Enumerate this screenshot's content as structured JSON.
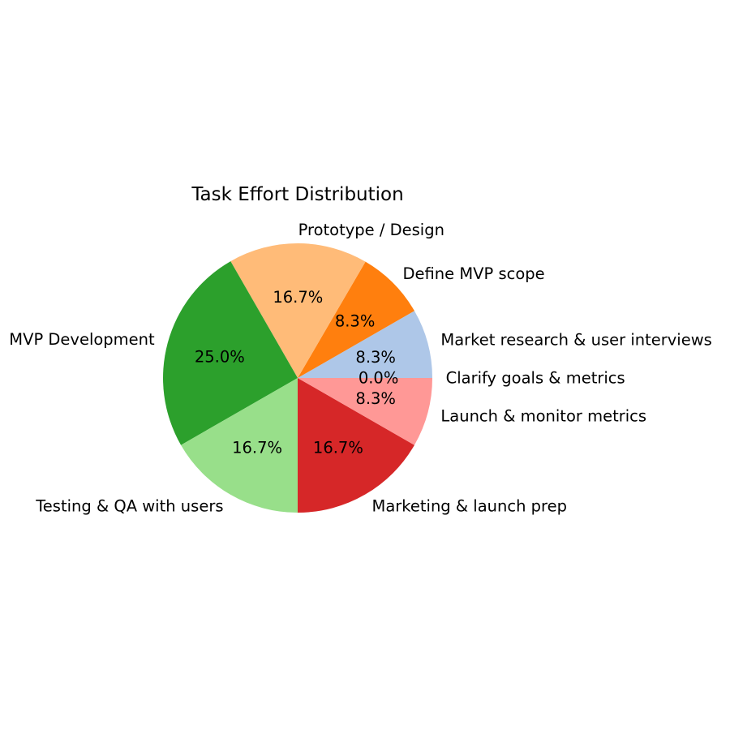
{
  "chart_data": {
    "type": "pie",
    "title": "Task Effort Distribution",
    "start_angle_deg": 0,
    "direction": "counterclockwise",
    "legend": "none",
    "slices": [
      {
        "label": "Clarify goals & metrics",
        "value": 0.0,
        "pct_label": "0.0%",
        "color": "#1f77b4"
      },
      {
        "label": "Market research & user interviews",
        "value": 8.3,
        "pct_label": "8.3%",
        "color": "#aec7e8"
      },
      {
        "label": "Define MVP scope",
        "value": 8.3,
        "pct_label": "8.3%",
        "color": "#ff7f0e"
      },
      {
        "label": "Prototype / Design",
        "value": 16.7,
        "pct_label": "16.7%",
        "color": "#ffbb78"
      },
      {
        "label": "MVP Development",
        "value": 25.0,
        "pct_label": "25.0%",
        "color": "#2ca02c"
      },
      {
        "label": "Testing & QA with users",
        "value": 16.7,
        "pct_label": "16.7%",
        "color": "#98df8a"
      },
      {
        "label": "Marketing & launch prep",
        "value": 16.7,
        "pct_label": "16.7%",
        "color": "#d62728"
      },
      {
        "label": "Launch & monitor metrics",
        "value": 8.3,
        "pct_label": "8.3%",
        "color": "#ff9896"
      }
    ]
  }
}
